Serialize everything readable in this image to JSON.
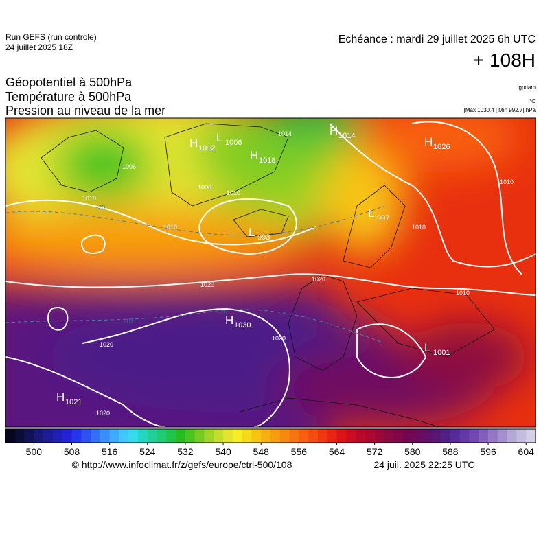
{
  "header": {
    "run": "Run GEFS (run controle)",
    "date": "24 juillet 2025 18Z",
    "valid": "Echéance : mardi 29 juillet 2025 6h UTC",
    "lead": "+ 108H"
  },
  "titles": [
    "Géopotentiel à 500hPa",
    "Température à 500hPa",
    "Pression au niveau de la mer"
  ],
  "units": [
    "gpdam",
    "°C",
    "[Max 1030.4 | Min 992.7] hPa"
  ],
  "centers": [
    {
      "label": "H",
      "value": 1012
    },
    {
      "label": "L",
      "value": 1006
    },
    {
      "label": "H",
      "value": 1018
    },
    {
      "label": "L",
      "value": 993
    },
    {
      "label": "H",
      "value": 1014
    },
    {
      "label": "H",
      "value": 1026
    },
    {
      "label": "L",
      "value": 997
    },
    {
      "label": "H",
      "value": 1030
    },
    {
      "label": "H",
      "value": 1021
    },
    {
      "label": "L",
      "value": 1001
    }
  ],
  "isobar_labels": [
    "1006",
    "1010",
    "1006",
    "1010",
    "1010",
    "1014",
    "1010",
    "1010",
    "1020",
    "1020",
    "1020",
    "1020",
    "1020",
    "1010"
  ],
  "temperature_labels": [
    "-20",
    "-10",
    "-10"
  ],
  "colorbar": {
    "range": [
      494,
      606
    ],
    "ticks": [
      500,
      508,
      516,
      524,
      532,
      540,
      548,
      556,
      564,
      572,
      580,
      588,
      596,
      604
    ],
    "colors": [
      "#06061e",
      "#0c0c3a",
      "#121258",
      "#181878",
      "#1c1c98",
      "#2020b8",
      "#2222d8",
      "#2636ee",
      "#2c52f4",
      "#3270f8",
      "#388efa",
      "#3eacfc",
      "#40c8fc",
      "#34dcec",
      "#24d8c0",
      "#20d098",
      "#20cc70",
      "#20c448",
      "#24bc20",
      "#4cc420",
      "#78cc20",
      "#a0d428",
      "#c4dc2c",
      "#e4e430",
      "#f8ec24",
      "#f8d81c",
      "#f8c414",
      "#f8b010",
      "#f89c10",
      "#f88810",
      "#f87410",
      "#f86010",
      "#f44c10",
      "#f03810",
      "#e82414",
      "#dc1418",
      "#cc0c20",
      "#bc0828",
      "#ac0830",
      "#9c0838",
      "#8c0840",
      "#800848",
      "#740850",
      "#6c0a5c",
      "#601068",
      "#561874",
      "#502084",
      "#562a98",
      "#6438a8",
      "#7448b4",
      "#8460bc",
      "#9478c4",
      "#a490cc",
      "#b4a8d4",
      "#c4bcdc",
      "#d4cee6"
    ]
  },
  "footer": {
    "url": "© http://www.infoclimat.fr/z/gefs/europe/ctrl-500/108",
    "generated": "24 juil. 2025 22:25 UTC"
  }
}
